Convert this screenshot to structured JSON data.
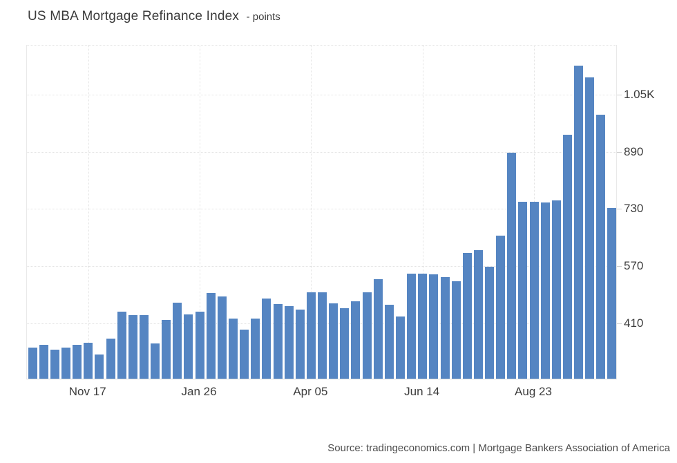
{
  "header": {
    "title": "US MBA Mortgage Refinance Index",
    "unit": "- points"
  },
  "footer": {
    "source": "Source: tradingeconomics.com | Mortgage Bankers Association of America"
  },
  "chart_data": {
    "type": "bar",
    "title": "US MBA Mortgage Refinance Index",
    "ylabel": "points",
    "xlabel": "",
    "grid": true,
    "legend": "none",
    "y_axis_side": "right",
    "ylim": [
      253,
      1189
    ],
    "bar_color": "#5585C2",
    "grid_color": "#E3E3E3",
    "values": [
      340,
      348,
      334,
      340,
      348,
      354,
      321,
      365,
      441,
      431,
      431,
      352,
      418,
      466,
      433,
      441,
      493,
      484,
      422,
      391,
      422,
      478,
      462,
      457,
      447,
      495,
      495,
      464,
      451,
      470,
      495,
      532,
      460,
      427,
      548,
      548,
      546,
      537,
      525,
      606,
      612,
      567,
      654,
      886,
      749,
      749,
      746,
      753,
      936,
      1130,
      1097,
      992,
      730
    ],
    "x_tick_labels": [
      "Nov 17",
      "Jan 26",
      "Apr 05",
      "Jun 14",
      "Aug 23"
    ],
    "x_tick_bar_indices": [
      5,
      15,
      25,
      35,
      45
    ],
    "y_ticks": [
      {
        "value": 410,
        "label": "410"
      },
      {
        "value": 570,
        "label": "570"
      },
      {
        "value": 730,
        "label": "730"
      },
      {
        "value": 890,
        "label": "890"
      },
      {
        "value": 1050,
        "label": "1.05K"
      }
    ]
  }
}
